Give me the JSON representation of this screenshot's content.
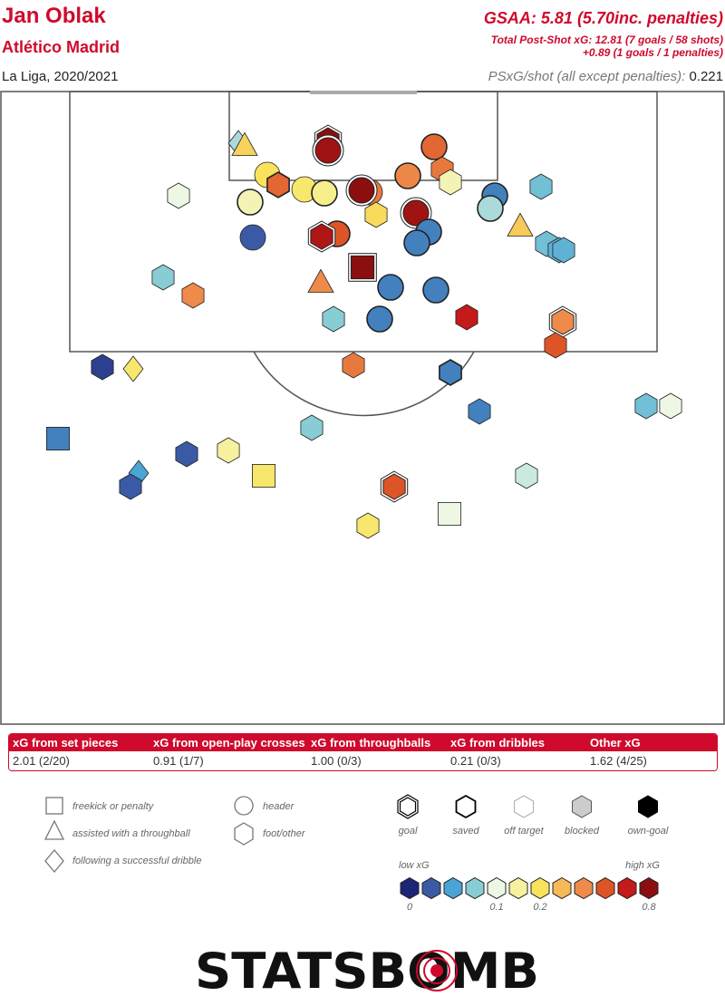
{
  "header": {
    "player": "Jan Oblak",
    "team": "Atlético Madrid",
    "season": "La Liga, 2020/2021",
    "gsaa": "GSAA: 5.81 (5.70inc. penalties)",
    "psxg_total": "Total Post-Shot xG: 12.81 (7 goals / 58 shots)",
    "psxg_penalties": "+0.89 (1 goals / 1 penalties)",
    "psxg_per_shot_label": "PSxG/shot (all except penalties):",
    "psxg_per_shot_value": "0.221"
  },
  "xg_table": {
    "headers": [
      "xG from set pieces",
      "xG from open-play crosses",
      "xG from throughballs",
      "xG from dribbles",
      "Other xG"
    ],
    "values": [
      "2.01 (2/20)",
      "0.91 (1/7)",
      "1.00 (0/3)",
      "0.21 (0/3)",
      "1.62 (4/25)"
    ]
  },
  "legend": {
    "shape_labels": [
      "freekick or penalty",
      "assisted with a throughball",
      "following a successful dribble",
      "header",
      "foot/other"
    ],
    "outcome_labels": [
      "goal",
      "saved",
      "off target",
      "blocked",
      "own-goal"
    ],
    "scale_low": "low xG",
    "scale_high": "high xG",
    "scale_ticks": [
      "0",
      "0.1",
      "0.2",
      "0.8"
    ],
    "scale_colors": [
      "#1d2577",
      "#3b5aa6",
      "#4aa5d6",
      "#88ccd4",
      "#eef7e4",
      "#f6f19e",
      "#f9e35c",
      "#f6b957",
      "#ee8b4a",
      "#dd5526",
      "#c41a1a",
      "#8c0f10"
    ]
  },
  "logo_text": "STATSBOMB",
  "colors": {
    "brand_red": "#cf0a2c",
    "pitch_line": "#555555"
  },
  "chart_data": {
    "type": "scatter",
    "title": "Jan Oblak",
    "description_axes": "shot map of shots faced, top-down half pitch; x/y in pitch yards (x 0-80 across width, y 0-70 distance from goal line)",
    "xlim": [
      0,
      80
    ],
    "ylim": [
      0,
      70
    ],
    "shape_codes": {
      "c": "header",
      "h": "foot/other",
      "s": "freekick or penalty",
      "t": "assisted with a throughball",
      "d": "following a successful dribble"
    },
    "outcome_codes": {
      "g": "goal",
      "s": "saved",
      "o": "off target",
      "b": "blocked"
    },
    "xg_color_scale": [
      0,
      0.8
    ],
    "shots": [
      {
        "x": 26.3,
        "y": 5.8,
        "shape": "d",
        "xg": 0.08,
        "outcome": "o"
      },
      {
        "x": 27.0,
        "y": 6.1,
        "shape": "t",
        "xg": 0.19,
        "outcome": "o"
      },
      {
        "x": 36.2,
        "y": 5.5,
        "shape": "h",
        "xg": 0.8,
        "outcome": "g"
      },
      {
        "x": 36.2,
        "y": 6.6,
        "shape": "c",
        "xg": 0.75,
        "outcome": "g"
      },
      {
        "x": 47.9,
        "y": 6.2,
        "shape": "c",
        "xg": 0.4,
        "outcome": "s"
      },
      {
        "x": 19.7,
        "y": 11.6,
        "shape": "h",
        "xg": 0.1,
        "outcome": "o"
      },
      {
        "x": 29.5,
        "y": 9.3,
        "shape": "c",
        "xg": 0.17,
        "outcome": "o"
      },
      {
        "x": 30.7,
        "y": 10.4,
        "shape": "h",
        "xg": 0.4,
        "outcome": "s"
      },
      {
        "x": 33.6,
        "y": 10.9,
        "shape": "c",
        "xg": 0.16,
        "outcome": "o"
      },
      {
        "x": 35.8,
        "y": 11.3,
        "shape": "c",
        "xg": 0.14,
        "outcome": "s"
      },
      {
        "x": 27.6,
        "y": 12.3,
        "shape": "c",
        "xg": 0.12,
        "outcome": "s"
      },
      {
        "x": 40.8,
        "y": 11.2,
        "shape": "c",
        "xg": 0.35,
        "outcome": "o"
      },
      {
        "x": 39.9,
        "y": 11.0,
        "shape": "c",
        "xg": 0.8,
        "outcome": "g"
      },
      {
        "x": 41.5,
        "y": 13.7,
        "shape": "h",
        "xg": 0.18,
        "outcome": "o"
      },
      {
        "x": 45.0,
        "y": 9.4,
        "shape": "c",
        "xg": 0.31,
        "outcome": "s"
      },
      {
        "x": 48.8,
        "y": 8.7,
        "shape": "h",
        "xg": 0.35,
        "outcome": "o"
      },
      {
        "x": 49.7,
        "y": 10.1,
        "shape": "h",
        "xg": 0.12,
        "outcome": "o"
      },
      {
        "x": 45.9,
        "y": 13.5,
        "shape": "c",
        "xg": 0.75,
        "outcome": "g"
      },
      {
        "x": 54.6,
        "y": 11.6,
        "shape": "c",
        "xg": 0.03,
        "outcome": "s"
      },
      {
        "x": 54.1,
        "y": 13.0,
        "shape": "c",
        "xg": 0.08,
        "outcome": "s"
      },
      {
        "x": 59.7,
        "y": 10.6,
        "shape": "h",
        "xg": 0.06,
        "outcome": "o"
      },
      {
        "x": 57.4,
        "y": 15.0,
        "shape": "t",
        "xg": 0.2,
        "outcome": "o"
      },
      {
        "x": 27.9,
        "y": 16.2,
        "shape": "c",
        "xg": 0.02,
        "outcome": "o"
      },
      {
        "x": 37.2,
        "y": 15.8,
        "shape": "c",
        "xg": 0.45,
        "outcome": "s"
      },
      {
        "x": 35.5,
        "y": 16.1,
        "shape": "h",
        "xg": 0.7,
        "outcome": "g"
      },
      {
        "x": 47.3,
        "y": 15.6,
        "shape": "c",
        "xg": 0.03,
        "outcome": "s"
      },
      {
        "x": 46.0,
        "y": 16.8,
        "shape": "c",
        "xg": 0.03,
        "outcome": "s"
      },
      {
        "x": 60.3,
        "y": 16.9,
        "shape": "h",
        "xg": 0.06,
        "outcome": "o"
      },
      {
        "x": 61.7,
        "y": 17.6,
        "shape": "h",
        "xg": 0.05,
        "outcome": "o"
      },
      {
        "x": 62.2,
        "y": 17.6,
        "shape": "h",
        "xg": 0.05,
        "outcome": "o"
      },
      {
        "x": 18.0,
        "y": 20.6,
        "shape": "h",
        "xg": 0.07,
        "outcome": "o"
      },
      {
        "x": 21.3,
        "y": 22.6,
        "shape": "h",
        "xg": 0.3,
        "outcome": "o"
      },
      {
        "x": 40.0,
        "y": 19.5,
        "shape": "s",
        "xg": 0.8,
        "outcome": "g"
      },
      {
        "x": 35.4,
        "y": 21.2,
        "shape": "t",
        "xg": 0.3,
        "outcome": "o"
      },
      {
        "x": 43.1,
        "y": 21.7,
        "shape": "c",
        "xg": 0.03,
        "outcome": "s"
      },
      {
        "x": 48.1,
        "y": 22.0,
        "shape": "c",
        "xg": 0.03,
        "outcome": "s"
      },
      {
        "x": 36.8,
        "y": 25.2,
        "shape": "h",
        "xg": 0.07,
        "outcome": "o"
      },
      {
        "x": 41.9,
        "y": 25.2,
        "shape": "c",
        "xg": 0.03,
        "outcome": "s"
      },
      {
        "x": 51.5,
        "y": 25.0,
        "shape": "h",
        "xg": 0.65,
        "outcome": "o"
      },
      {
        "x": 62.1,
        "y": 25.5,
        "shape": "h",
        "xg": 0.3,
        "outcome": "g"
      },
      {
        "x": 61.3,
        "y": 28.1,
        "shape": "h",
        "xg": 0.45,
        "outcome": "o"
      },
      {
        "x": 11.3,
        "y": 30.5,
        "shape": "h",
        "xg": 0.01,
        "outcome": "o"
      },
      {
        "x": 14.7,
        "y": 30.7,
        "shape": "d",
        "xg": 0.16,
        "outcome": "o"
      },
      {
        "x": 39.0,
        "y": 30.3,
        "shape": "h",
        "xg": 0.35,
        "outcome": "o"
      },
      {
        "x": 49.7,
        "y": 31.1,
        "shape": "h",
        "xg": 0.03,
        "outcome": "s"
      },
      {
        "x": 52.9,
        "y": 35.4,
        "shape": "h",
        "xg": 0.03,
        "outcome": "o"
      },
      {
        "x": 71.3,
        "y": 34.8,
        "shape": "h",
        "xg": 0.06,
        "outcome": "o"
      },
      {
        "x": 74.0,
        "y": 34.8,
        "shape": "h",
        "xg": 0.1,
        "outcome": "o"
      },
      {
        "x": 34.4,
        "y": 37.2,
        "shape": "h",
        "xg": 0.07,
        "outcome": "o"
      },
      {
        "x": 6.4,
        "y": 38.4,
        "shape": "s",
        "xg": 0.03,
        "outcome": "o"
      },
      {
        "x": 20.6,
        "y": 40.1,
        "shape": "h",
        "xg": 0.02,
        "outcome": "o"
      },
      {
        "x": 25.2,
        "y": 39.7,
        "shape": "h",
        "xg": 0.13,
        "outcome": "o"
      },
      {
        "x": 15.3,
        "y": 42.2,
        "shape": "d",
        "xg": 0.04,
        "outcome": "o"
      },
      {
        "x": 14.4,
        "y": 43.7,
        "shape": "h",
        "xg": 0.02,
        "outcome": "o"
      },
      {
        "x": 29.1,
        "y": 42.5,
        "shape": "s",
        "xg": 0.16,
        "outcome": "o"
      },
      {
        "x": 58.1,
        "y": 42.5,
        "shape": "h",
        "xg": 0.09,
        "outcome": "o"
      },
      {
        "x": 43.5,
        "y": 43.7,
        "shape": "h",
        "xg": 0.45,
        "outcome": "g"
      },
      {
        "x": 40.6,
        "y": 48.0,
        "shape": "h",
        "xg": 0.16,
        "outcome": "o"
      },
      {
        "x": 49.6,
        "y": 46.7,
        "shape": "s",
        "xg": 0.1,
        "outcome": "o"
      }
    ]
  }
}
